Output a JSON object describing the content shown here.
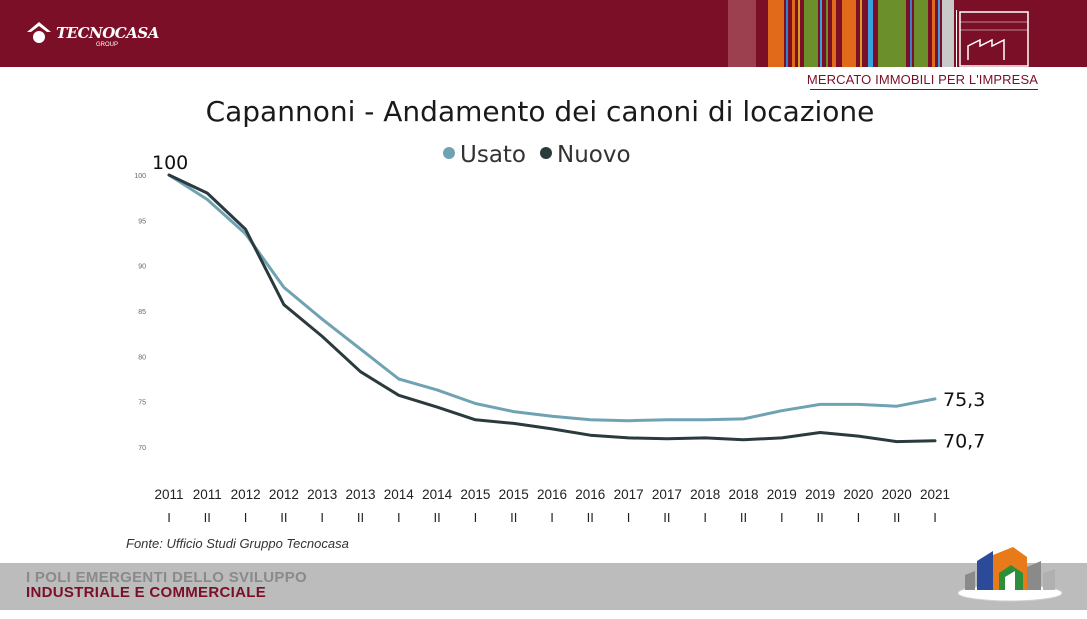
{
  "header": {
    "brand": "TECNOCASA",
    "brand_sub": "GROUP",
    "section_label": "MERCATO IMMOBILI PER L'IMPRESA",
    "stripe_colors": [
      "#a0434f",
      "#e06a1a",
      "#4a90c8",
      "#8a2b3c",
      "#6b8f2a",
      "#e06a1a",
      "#3aa0e0",
      "#6b8f2a",
      "#c9c9c9",
      "#e87a1a"
    ]
  },
  "chart_data": {
    "type": "line",
    "title": "Capannoni - Andamento dei canoni di locazione",
    "categories": [
      "2011\nI",
      "2011\nII",
      "2012\nI",
      "2012\nII",
      "2013\nI",
      "2013\nII",
      "2014\nI",
      "2014\nII",
      "2015\nI",
      "2015\nII",
      "2016\nI",
      "2016\nII",
      "2017\nI",
      "2017\nII",
      "2018\nI",
      "2018\nII",
      "2019\nI",
      "2019\nII",
      "2020\nI",
      "2020\nII",
      "2021\nI"
    ],
    "category_years": [
      "2011",
      "2011",
      "2012",
      "2012",
      "2013",
      "2013",
      "2014",
      "2014",
      "2015",
      "2015",
      "2016",
      "2016",
      "2017",
      "2017",
      "2018",
      "2018",
      "2019",
      "2019",
      "2020",
      "2020",
      "2021"
    ],
    "category_halves": [
      "I",
      "II",
      "I",
      "II",
      "I",
      "II",
      "I",
      "II",
      "I",
      "II",
      "I",
      "II",
      "I",
      "II",
      "I",
      "II",
      "I",
      "II",
      "I",
      "II",
      "I"
    ],
    "series": [
      {
        "name": "Usato",
        "color": "#6fa3b3",
        "values": [
          100,
          97.3,
          93.5,
          87.6,
          84.1,
          80.8,
          77.5,
          76.3,
          74.8,
          73.9,
          73.4,
          73.0,
          72.9,
          73.0,
          73.0,
          73.1,
          74.0,
          74.7,
          74.7,
          74.5,
          75.3
        ]
      },
      {
        "name": "Nuovo",
        "color": "#2b3a3d",
        "values": [
          100,
          98.0,
          94.0,
          85.7,
          82.2,
          78.3,
          75.7,
          74.4,
          73.0,
          72.6,
          72.0,
          71.3,
          71.0,
          70.9,
          71.0,
          70.8,
          71.0,
          71.6,
          71.2,
          70.6,
          70.7
        ]
      }
    ],
    "yticks": [
      100,
      95,
      90,
      85,
      80,
      75,
      70
    ],
    "ylim": [
      70,
      100
    ],
    "start_label": "100",
    "end_labels": [
      "75,3",
      "70,7"
    ],
    "legend_position": "top-center",
    "grid": false
  },
  "source_note": "Fonte: Ufficio Studi Gruppo Tecnocasa",
  "footer": {
    "line1": "I POLI EMERGENTI DELLO SVILUPPO",
    "line2": "INDUSTRIALE E COMMERCIALE"
  }
}
